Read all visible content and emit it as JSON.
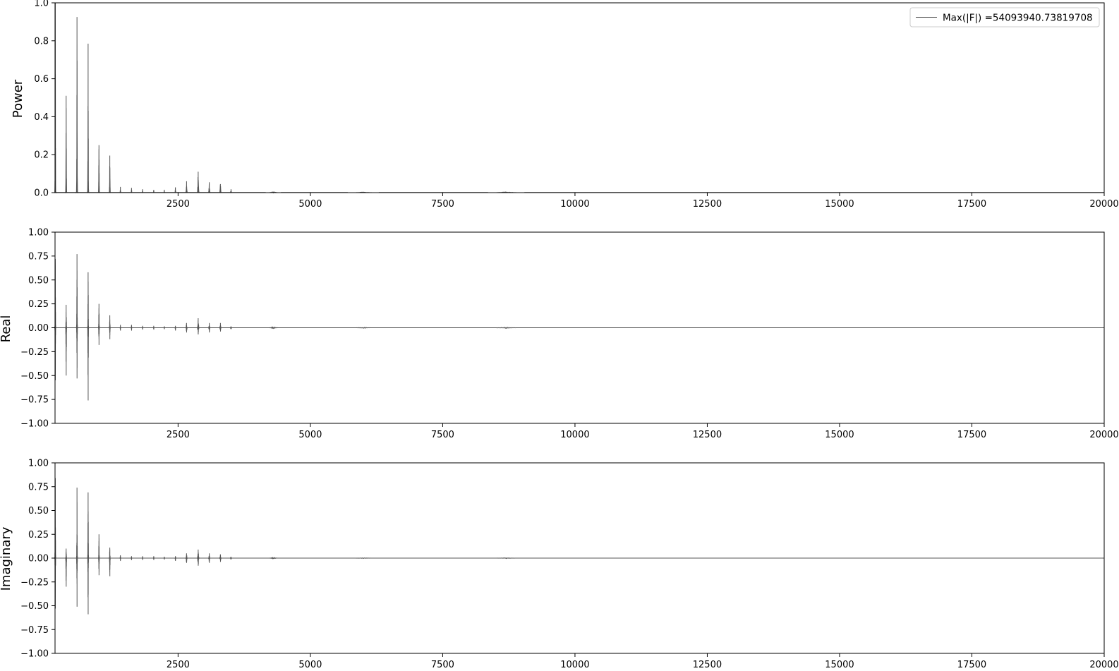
{
  "chart_data": [
    {
      "type": "line",
      "name": "power",
      "ylabel": "Power",
      "xlim": [
        175,
        20000
      ],
      "ylim": [
        0,
        1.0
      ],
      "xticks": [
        2500,
        5000,
        7500,
        10000,
        12500,
        15000,
        17500,
        20000
      ],
      "yticks": [
        0.0,
        0.2,
        0.4,
        0.6,
        0.8,
        1.0
      ],
      "ytick_labels": [
        "0.0",
        "0.2",
        "0.4",
        "0.6",
        "0.8",
        "1.0"
      ],
      "grid": false,
      "legend": {
        "position": "top-right",
        "entries": [
          "Max(|F|) =54093940.73819708"
        ]
      },
      "line_color": "#555555",
      "spikes": [
        {
          "x": 180,
          "hi": 1.0,
          "width": 25
        },
        {
          "x": 385,
          "hi": 0.51,
          "width": 30
        },
        {
          "x": 590,
          "hi": 0.925,
          "width": 30
        },
        {
          "x": 800,
          "hi": 0.785,
          "width": 30
        },
        {
          "x": 1005,
          "hi": 0.25,
          "width": 30
        },
        {
          "x": 1210,
          "hi": 0.195,
          "width": 30
        },
        {
          "x": 1410,
          "hi": 0.03,
          "width": 25
        },
        {
          "x": 1620,
          "hi": 0.025,
          "width": 25
        },
        {
          "x": 1830,
          "hi": 0.018,
          "width": 25
        },
        {
          "x": 2040,
          "hi": 0.015,
          "width": 25
        },
        {
          "x": 2240,
          "hi": 0.015,
          "width": 25
        },
        {
          "x": 2450,
          "hi": 0.028,
          "width": 30
        },
        {
          "x": 2660,
          "hi": 0.06,
          "width": 45
        },
        {
          "x": 2880,
          "hi": 0.11,
          "width": 50
        },
        {
          "x": 3090,
          "hi": 0.055,
          "width": 45
        },
        {
          "x": 3300,
          "hi": 0.045,
          "width": 45
        },
        {
          "x": 3500,
          "hi": 0.018,
          "width": 40
        },
        {
          "x": 4300,
          "hi": 0.004,
          "width": 300
        },
        {
          "x": 6000,
          "hi": 0.003,
          "width": 600
        },
        {
          "x": 8700,
          "hi": 0.004,
          "width": 700
        }
      ]
    },
    {
      "type": "line",
      "name": "real",
      "ylabel": "Real",
      "xlim": [
        175,
        20000
      ],
      "ylim": [
        -1.0,
        1.0
      ],
      "xticks": [
        2500,
        5000,
        7500,
        10000,
        12500,
        15000,
        17500,
        20000
      ],
      "yticks": [
        -1.0,
        -0.75,
        -0.5,
        -0.25,
        0.0,
        0.25,
        0.5,
        0.75,
        1.0
      ],
      "ytick_labels": [
        "−1.00",
        "−0.75",
        "−0.50",
        "−0.25",
        "0.00",
        "0.25",
        "0.50",
        "0.75",
        "1.00"
      ],
      "grid": false,
      "line_color": "#555555",
      "spikes": [
        {
          "x": 180,
          "hi": 0.72,
          "lo": -0.55,
          "width": 25
        },
        {
          "x": 385,
          "hi": 0.24,
          "lo": -0.5,
          "width": 30
        },
        {
          "x": 590,
          "hi": 0.77,
          "lo": -0.53,
          "width": 30
        },
        {
          "x": 800,
          "hi": 0.58,
          "lo": -0.76,
          "width": 30
        },
        {
          "x": 1005,
          "hi": 0.25,
          "lo": -0.18,
          "width": 30
        },
        {
          "x": 1210,
          "hi": 0.13,
          "lo": -0.12,
          "width": 30
        },
        {
          "x": 1410,
          "hi": 0.03,
          "lo": -0.03,
          "width": 25
        },
        {
          "x": 1620,
          "hi": 0.03,
          "lo": -0.03,
          "width": 25
        },
        {
          "x": 1830,
          "hi": 0.02,
          "lo": -0.02,
          "width": 25
        },
        {
          "x": 2040,
          "hi": 0.02,
          "lo": -0.02,
          "width": 25
        },
        {
          "x": 2240,
          "hi": 0.015,
          "lo": -0.015,
          "width": 25
        },
        {
          "x": 2450,
          "hi": 0.02,
          "lo": -0.03,
          "width": 30
        },
        {
          "x": 2660,
          "hi": 0.05,
          "lo": -0.05,
          "width": 45
        },
        {
          "x": 2880,
          "hi": 0.1,
          "lo": -0.07,
          "width": 50
        },
        {
          "x": 3090,
          "hi": 0.05,
          "lo": -0.05,
          "width": 45
        },
        {
          "x": 3300,
          "hi": 0.05,
          "lo": -0.04,
          "width": 45
        },
        {
          "x": 3500,
          "hi": 0.015,
          "lo": -0.015,
          "width": 40
        },
        {
          "x": 4300,
          "hi": 0.005,
          "lo": -0.005,
          "width": 300
        },
        {
          "x": 6000,
          "hi": 0.004,
          "lo": -0.004,
          "width": 600
        },
        {
          "x": 8700,
          "hi": 0.005,
          "lo": -0.005,
          "width": 700
        }
      ]
    },
    {
      "type": "line",
      "name": "imaginary",
      "ylabel": "Imaginary",
      "xlim": [
        175,
        20000
      ],
      "ylim": [
        -1.0,
        1.0
      ],
      "xticks": [
        2500,
        5000,
        7500,
        10000,
        12500,
        15000,
        17500,
        20000
      ],
      "yticks": [
        -1.0,
        -0.75,
        -0.5,
        -0.25,
        0.0,
        0.25,
        0.5,
        0.75,
        1.0
      ],
      "ytick_labels": [
        "−1.00",
        "−0.75",
        "−0.50",
        "−0.25",
        "0.00",
        "0.25",
        "0.50",
        "0.75",
        "1.00"
      ],
      "grid": false,
      "line_color": "#555555",
      "spikes": [
        {
          "x": 180,
          "hi": 0.84,
          "lo": -0.53,
          "width": 25
        },
        {
          "x": 385,
          "hi": 0.1,
          "lo": -0.3,
          "width": 30
        },
        {
          "x": 590,
          "hi": 0.74,
          "lo": -0.51,
          "width": 30
        },
        {
          "x": 800,
          "hi": 0.69,
          "lo": -0.59,
          "width": 30
        },
        {
          "x": 1005,
          "hi": 0.25,
          "lo": -0.18,
          "width": 30
        },
        {
          "x": 1210,
          "hi": 0.11,
          "lo": -0.19,
          "width": 30
        },
        {
          "x": 1410,
          "hi": 0.03,
          "lo": -0.03,
          "width": 25
        },
        {
          "x": 1620,
          "hi": 0.02,
          "lo": -0.02,
          "width": 25
        },
        {
          "x": 1830,
          "hi": 0.02,
          "lo": -0.02,
          "width": 25
        },
        {
          "x": 2040,
          "hi": 0.02,
          "lo": -0.02,
          "width": 25
        },
        {
          "x": 2240,
          "hi": 0.015,
          "lo": -0.015,
          "width": 25
        },
        {
          "x": 2450,
          "hi": 0.02,
          "lo": -0.03,
          "width": 30
        },
        {
          "x": 2660,
          "hi": 0.05,
          "lo": -0.05,
          "width": 45
        },
        {
          "x": 2880,
          "hi": 0.09,
          "lo": -0.08,
          "width": 50
        },
        {
          "x": 3090,
          "hi": 0.05,
          "lo": -0.05,
          "width": 45
        },
        {
          "x": 3300,
          "hi": 0.04,
          "lo": -0.04,
          "width": 45
        },
        {
          "x": 3500,
          "hi": 0.015,
          "lo": -0.015,
          "width": 40
        },
        {
          "x": 4300,
          "hi": 0.004,
          "lo": -0.004,
          "width": 300
        },
        {
          "x": 6000,
          "hi": 0.003,
          "lo": -0.003,
          "width": 600
        },
        {
          "x": 8700,
          "hi": 0.004,
          "lo": -0.004,
          "width": 700
        }
      ]
    }
  ]
}
